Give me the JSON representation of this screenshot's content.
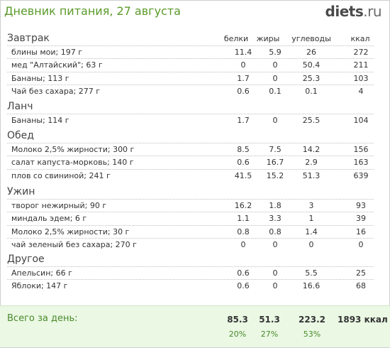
{
  "header": {
    "title": "Дневник питания, 27 августа",
    "logo_main": "diets",
    "logo_tld": ".ru"
  },
  "columns": [
    "белки",
    "жиры",
    "углеводы",
    "ккал"
  ],
  "meals": [
    {
      "name": "Завтрак",
      "items": [
        {
          "name": "блины мои; 197 г",
          "protein": "11.4",
          "fat": "5.9",
          "carbs": "26",
          "kcal": "272"
        },
        {
          "name": "мед \"Алтайский\"; 63 г",
          "protein": "0",
          "fat": "0",
          "carbs": "50.4",
          "kcal": "211"
        },
        {
          "name": "Бананы; 113 г",
          "protein": "1.7",
          "fat": "0",
          "carbs": "25.3",
          "kcal": "103"
        },
        {
          "name": "Чай без сахара; 277 г",
          "protein": "0.6",
          "fat": "0.1",
          "carbs": "0.1",
          "kcal": "4"
        }
      ]
    },
    {
      "name": "Ланч",
      "items": [
        {
          "name": "Бананы; 114 г",
          "protein": "1.7",
          "fat": "0",
          "carbs": "25.5",
          "kcal": "104"
        }
      ]
    },
    {
      "name": "Обед",
      "items": [
        {
          "name": "Молоко 2,5% жирности; 300 г",
          "protein": "8.5",
          "fat": "7.5",
          "carbs": "14.2",
          "kcal": "156"
        },
        {
          "name": "салат капуста-морковь; 140 г",
          "protein": "0.6",
          "fat": "16.7",
          "carbs": "2.9",
          "kcal": "163"
        },
        {
          "name": "плов со свининой; 241 г",
          "protein": "41.5",
          "fat": "15.2",
          "carbs": "51.3",
          "kcal": "639"
        }
      ]
    },
    {
      "name": "Ужин",
      "items": [
        {
          "name": "творог нежирный; 90 г",
          "protein": "16.2",
          "fat": "1.8",
          "carbs": "3",
          "kcal": "93"
        },
        {
          "name": "миндаль эдем; 6 г",
          "protein": "1.1",
          "fat": "3.3",
          "carbs": "1",
          "kcal": "39"
        },
        {
          "name": "Молоко 2,5% жирности; 30 г",
          "protein": "0.8",
          "fat": "0.8",
          "carbs": "1.4",
          "kcal": "16"
        },
        {
          "name": "чай зеленый без сахара; 270 г",
          "protein": "0",
          "fat": "0",
          "carbs": "0",
          "kcal": "0"
        }
      ]
    },
    {
      "name": "Другое",
      "items": [
        {
          "name": "Апельсин; 66 г",
          "protein": "0.6",
          "fat": "0",
          "carbs": "5.5",
          "kcal": "25"
        },
        {
          "name": "Яблоки; 147 г",
          "protein": "0.6",
          "fat": "0",
          "carbs": "16.6",
          "kcal": "68"
        }
      ]
    }
  ],
  "totals": {
    "label": "Всего за день:",
    "protein": "85.3",
    "fat": "51.3",
    "carbs": "223.2",
    "kcal": "1893 ккал",
    "protein_pct": "20%",
    "fat_pct": "27%",
    "carbs_pct": "53%"
  }
}
